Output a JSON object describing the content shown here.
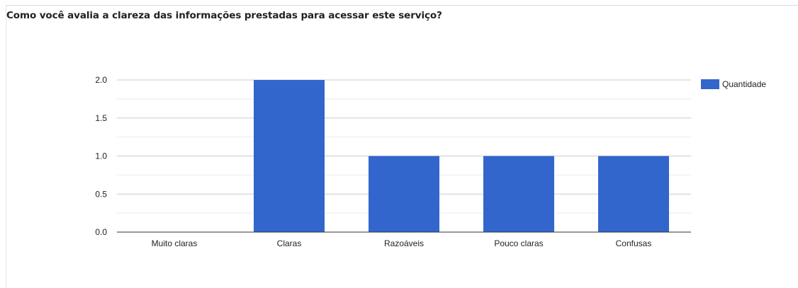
{
  "chart_data": {
    "type": "bar",
    "title": "Como você avalia a clareza das informações prestadas para acessar este serviço?",
    "categories": [
      "Muito claras",
      "Claras",
      "Razoáveis",
      "Pouco claras",
      "Confusas"
    ],
    "series": [
      {
        "name": "Quantidade",
        "values": [
          0,
          2,
          1,
          1,
          1
        ]
      }
    ],
    "ylim": [
      0,
      2
    ],
    "yticks": [
      "0.0",
      "0.5",
      "1.0",
      "1.5",
      "2.0"
    ],
    "ytick_values": [
      0,
      0.5,
      1,
      1.5,
      2
    ],
    "grid": true,
    "legend_position": "right",
    "colors": {
      "bar": "#3366cc",
      "grid_major": "#cccccc",
      "grid_minor": "#ebebeb",
      "baseline": "#333333"
    }
  }
}
